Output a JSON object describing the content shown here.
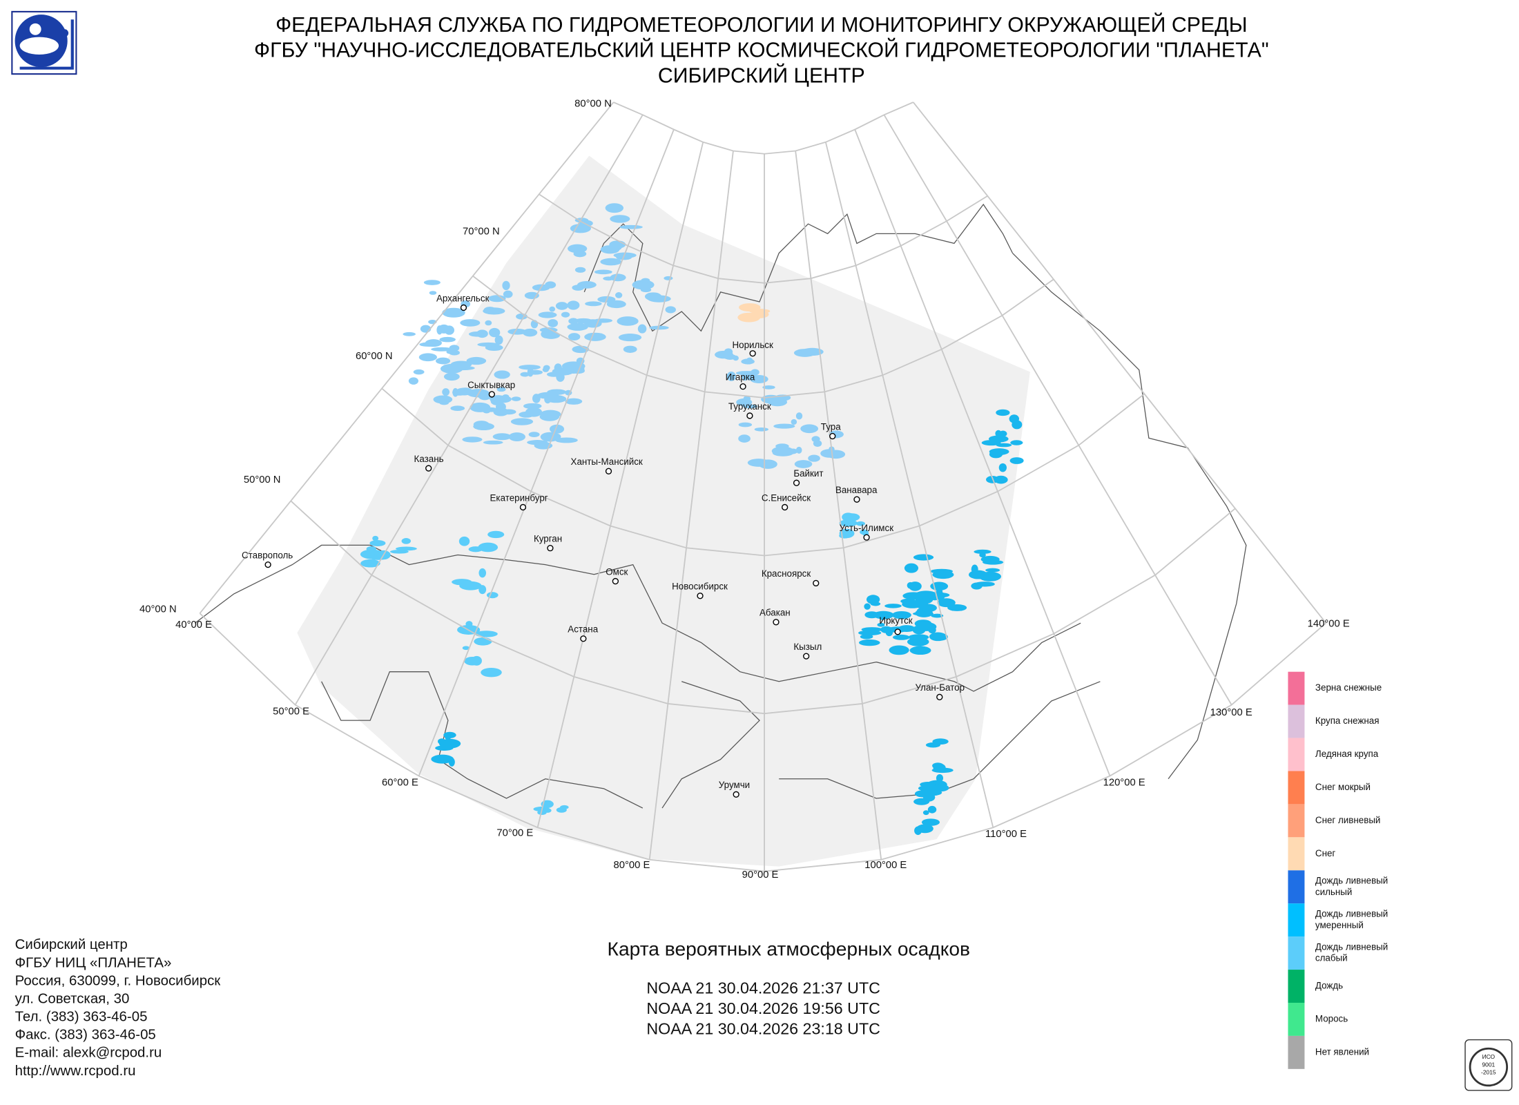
{
  "header": {
    "lines": [
      "ФЕДЕРАЛЬНАЯ СЛУЖБА ПО ГИДРОМЕТЕОРОЛОГИИ И МОНИТОРИНГУ ОКРУЖАЮЩЕЙ СРЕДЫ",
      "ФГБУ \"НАУЧНО-ИССЛЕДОВАТЕЛЬСКИЙ ЦЕНТР КОСМИЧЕСКОЙ ГИДРОМЕТЕОРОЛОГИИ \"ПЛАНЕТА\"",
      "СИБИРСКИЙ ЦЕНТР"
    ]
  },
  "graticule": {
    "parallels": [
      "80°00 N",
      "70°00 N",
      "60°00 N",
      "50°00 N",
      "40°00 N"
    ],
    "meridians": [
      "40°00 E",
      "50°00 E",
      "60°00 E",
      "70°00 E",
      "80°00 E",
      "90°00 E",
      "100°00 E",
      "110°00 E",
      "120°00 E",
      "130°00 E",
      "140°00 E"
    ]
  },
  "cities": [
    "Архангельск",
    "Сыктывкар",
    "Казань",
    "Ставрополь",
    "Екатеринбург",
    "Курган",
    "Ханты-Мансийск",
    "Омск",
    "Новосибирск",
    "Астана",
    "Норильск",
    "Игарка",
    "Туруханск",
    "Тура",
    "Байкит",
    "С.Енисейск",
    "Ванавара",
    "Усть-Илимск",
    "Красноярск",
    "Абакан",
    "Кызыл",
    "Иркутск",
    "Улан-Батор",
    "Урумчи"
  ],
  "legend": {
    "items": [
      {
        "label": [
          "Зерна снежные"
        ],
        "color": "#f36f98"
      },
      {
        "label": [
          "Крупа снежная"
        ],
        "color": "#dcc0dc"
      },
      {
        "label": [
          "Ледяная крупа"
        ],
        "color": "#ffc0cc"
      },
      {
        "label": [
          "Снег мокрый"
        ],
        "color": "#ff7f4f"
      },
      {
        "label": [
          "Снег ливневый"
        ],
        "color": "#ffa07a"
      },
      {
        "label": [
          "Снег"
        ],
        "color": "#ffdab3"
      },
      {
        "label": [
          "Дождь ливневый",
          "сильный"
        ],
        "color": "#1f6fe5"
      },
      {
        "label": [
          "Дождь ливневый",
          "умеренный"
        ],
        "color": "#00bfff"
      },
      {
        "label": [
          "Дождь ливневый",
          "слабый"
        ],
        "color": "#5ccdfa"
      },
      {
        "label": [
          "Дождь"
        ],
        "color": "#00b266"
      },
      {
        "label": [
          "Морось"
        ],
        "color": "#40e88e"
      },
      {
        "label": [
          "Нет явлений"
        ],
        "color": "#a8a8a8"
      }
    ]
  },
  "footer": {
    "contact": [
      "Сибирский центр",
      "ФГБУ НИЦ «ПЛАНЕТА»",
      "Россия, 630099, г. Новосибирск",
      "ул. Советская, 30",
      "Тел. (383) 363-46-05",
      "Факс. (383) 363-46-05",
      "E-mail: alexk@rcpod.ru",
      "http://www.rcpod.ru"
    ]
  },
  "map_title": "Карта вероятных атмосферных осадков",
  "passes": [
    "NOAA 21 30.04.2026  21:37 UTC",
    "NOAA 21 30.04.2026  19:56 UTC",
    "NOAA 21 30.04.2026  23:18 UTC"
  ],
  "badge": [
    "ИСО",
    "9001",
    "-2015"
  ]
}
